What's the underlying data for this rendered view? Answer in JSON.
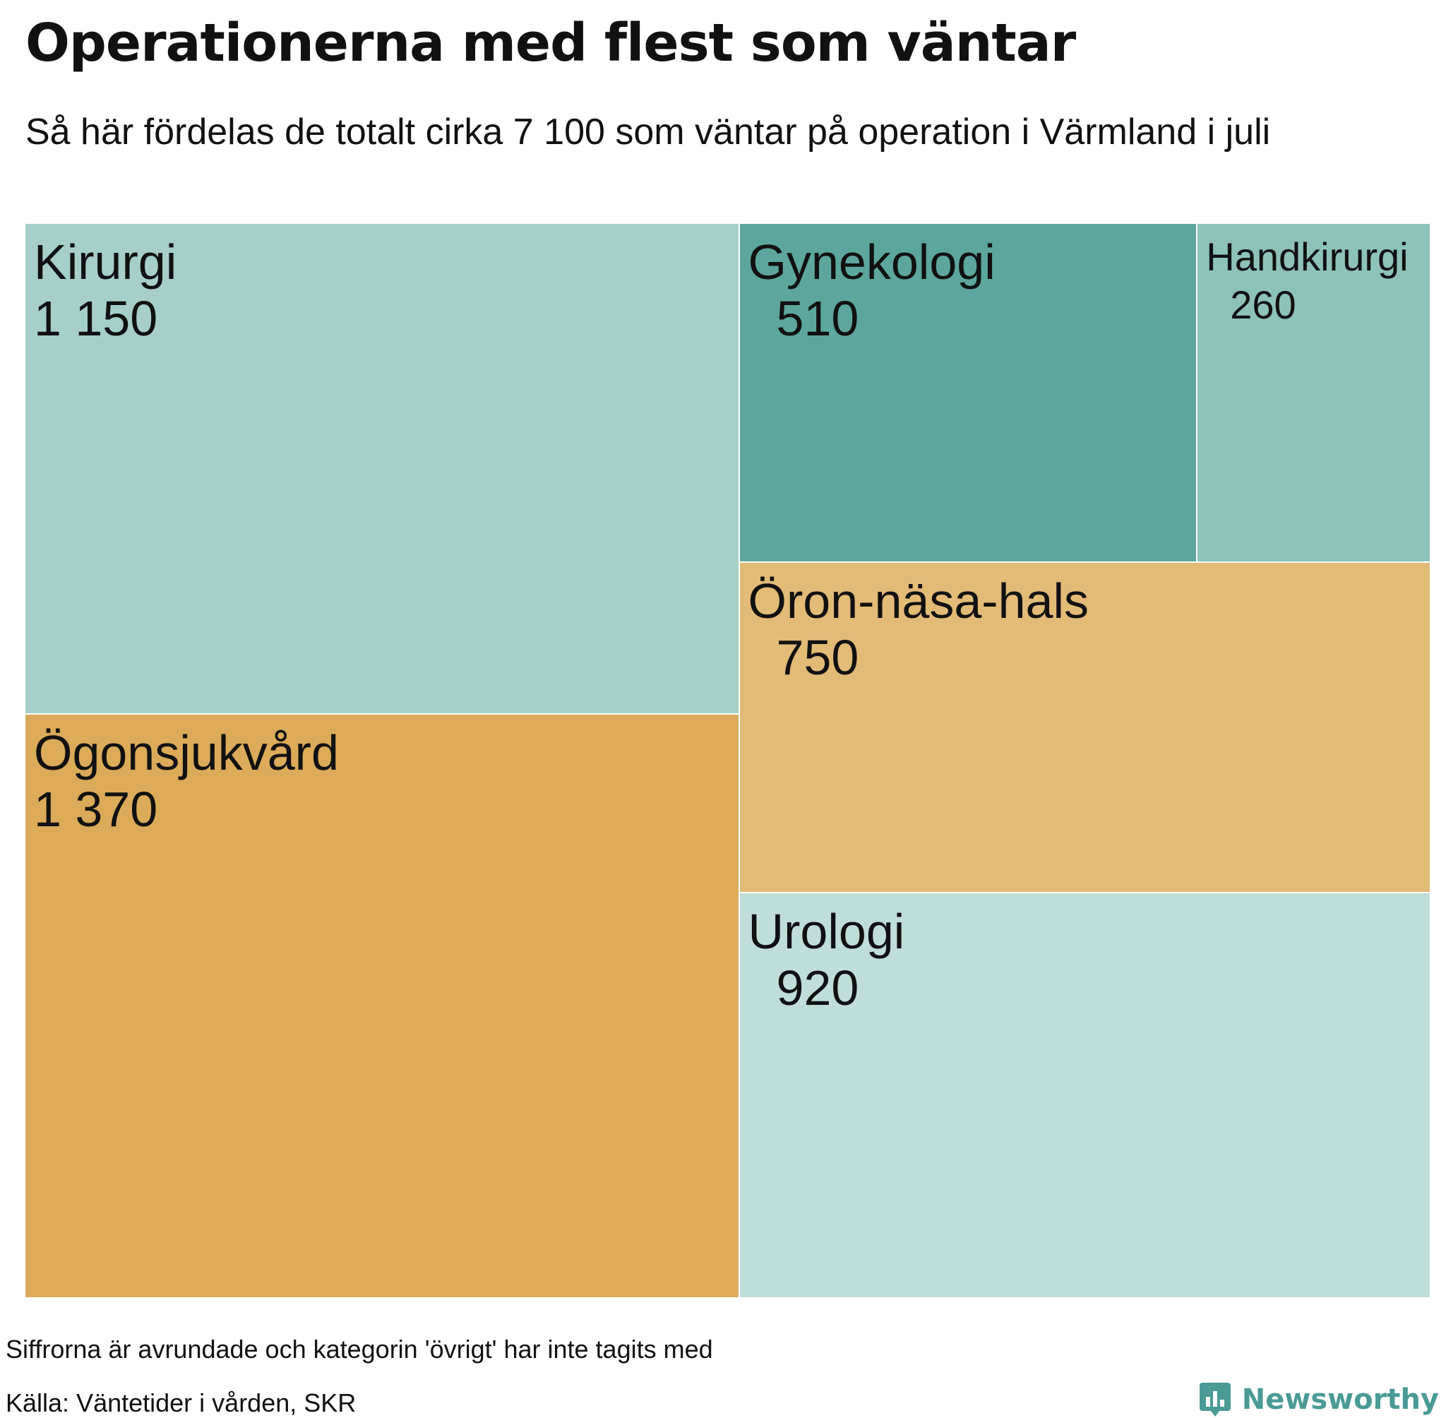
{
  "title": "Operationerna med flest som väntar",
  "subtitle": "Så här fördelas de totalt cirka 7 100 som väntar på operation i Värmland i juli",
  "chart_data": {
    "type": "treemap",
    "items": [
      {
        "label": "Kirurgi",
        "value": 1150,
        "value_label": "1 150",
        "color": "#a6cfc9"
      },
      {
        "label": "Ögonsjukvård",
        "value": 1370,
        "value_label": "1 370",
        "color": "#dbab59"
      },
      {
        "label": "Gynekologi",
        "value": 510,
        "value_label": "510",
        "color": "#5ca69d"
      },
      {
        "label": "Handkirurgi",
        "value": 260,
        "value_label": "260",
        "color": "#8dc2b9"
      },
      {
        "label": "Öron-näsa-hals",
        "value": 750,
        "value_label": "750",
        "color": "#e2bb77"
      },
      {
        "label": "Urologi",
        "value": 920,
        "value_label": "920",
        "color": "#bfded8"
      }
    ]
  },
  "footer": {
    "note": "Siffrorna är avrundade och kategorin 'övrigt' har inte tagits med",
    "source": "Källa: Väntetider i vården, SKR",
    "brand": "Newsworthy",
    "brand_icon": "newsworthy-logo-icon",
    "brand_color": "#4a9b96"
  }
}
